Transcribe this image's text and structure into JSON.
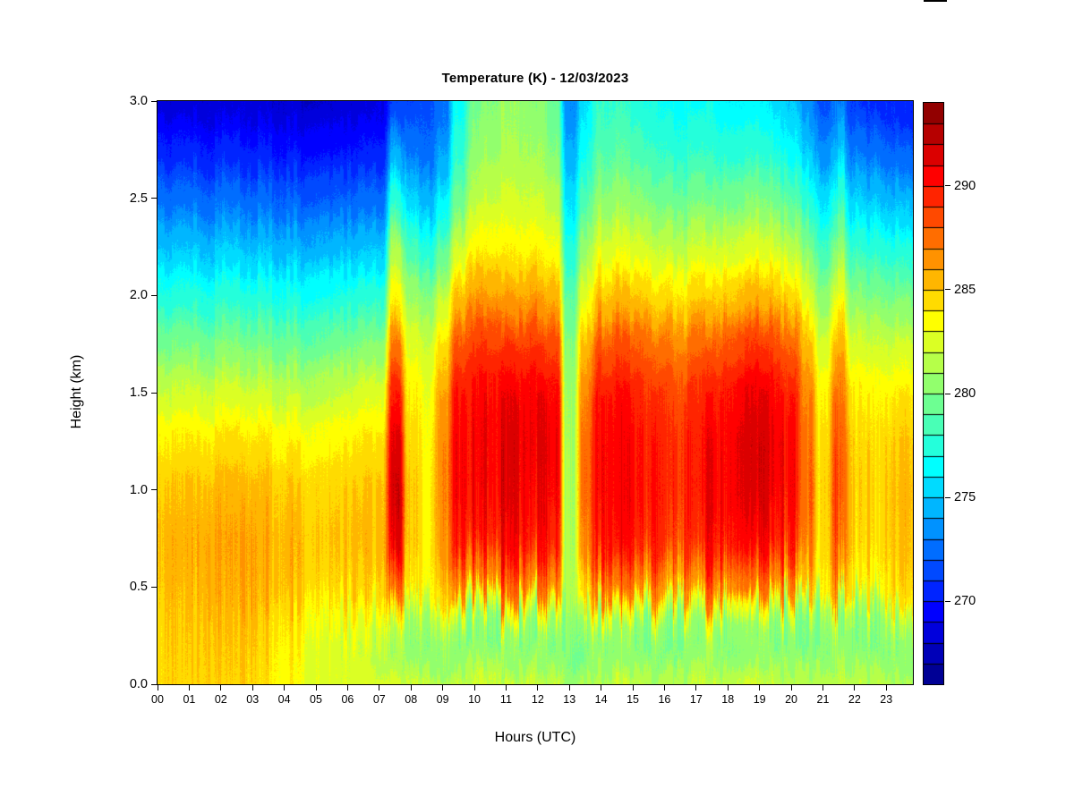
{
  "chart_data": {
    "type": "heatmap",
    "title": "Temperature (K) - 12/03/2023",
    "xlabel": "Hours (UTC)",
    "ylabel": "Height (km)",
    "x_tick_labels": [
      "00",
      "01",
      "02",
      "03",
      "04",
      "05",
      "06",
      "07",
      "08",
      "09",
      "10",
      "11",
      "12",
      "13",
      "14",
      "15",
      "16",
      "17",
      "18",
      "19",
      "20",
      "21",
      "22",
      "23"
    ],
    "y_tick_labels": [
      "0.0",
      "0.5",
      "1.0",
      "1.5",
      "2.0",
      "2.5",
      "3.0"
    ],
    "y_tick_values": [
      0,
      0.5,
      1,
      1.5,
      2,
      2.5,
      3
    ],
    "xlim": [
      0,
      23.84
    ],
    "ylim": [
      0,
      3
    ],
    "zlim": [
      266,
      294
    ],
    "colorbar_tick_labels": [
      "270",
      "275",
      "280",
      "285",
      "290"
    ],
    "colorbar_tick_values": [
      270,
      275,
      280,
      285,
      290
    ],
    "colormap": "jet",
    "jet_anchors": [
      [
        0,
        [
          0,
          0,
          131
        ]
      ],
      [
        0.125,
        [
          0,
          0,
          255
        ]
      ],
      [
        0.375,
        [
          0,
          255,
          255
        ]
      ],
      [
        0.625,
        [
          255,
          255,
          0
        ]
      ],
      [
        0.875,
        [
          255,
          0,
          0
        ]
      ],
      [
        1,
        [
          128,
          0,
          0
        ]
      ]
    ],
    "grid_on": false,
    "legend_position": "right-colorbar",
    "x_hours": [
      0,
      0.5,
      1,
      1.5,
      2,
      2.5,
      3,
      3.5,
      4,
      4.5,
      5,
      5.5,
      6,
      6.5,
      7,
      7.5,
      8,
      8.5,
      9,
      9.5,
      10,
      10.5,
      11,
      11.5,
      12,
      12.5,
      13,
      13.5,
      14,
      14.5,
      15,
      15.5,
      16,
      16.5,
      17,
      17.5,
      18,
      18.5,
      19,
      19.5,
      20,
      20.5,
      21,
      21.5,
      22,
      22.5,
      23,
      23.5,
      24
    ],
    "heights_km": [
      0,
      0.15,
      0.3,
      0.4,
      0.5,
      0.75,
      1,
      1.25,
      1.5,
      1.75,
      2,
      2.25,
      2.5,
      2.75,
      3
    ],
    "values_K": [
      [
        284.8,
        284.9,
        285.1,
        285.3,
        285.6,
        285.8,
        285.4,
        284.3,
        282.4,
        280.0,
        277.6,
        275.2,
        272.8,
        270.6,
        268.6
      ],
      [
        284.9,
        285.0,
        285.2,
        285.4,
        285.7,
        285.8,
        285.3,
        284.2,
        282.3,
        280.0,
        277.5,
        275.0,
        272.6,
        270.4,
        268.5
      ],
      [
        284.7,
        284.9,
        285.1,
        285.3,
        285.6,
        285.7,
        285.3,
        284.1,
        282.2,
        279.8,
        277.4,
        274.9,
        272.5,
        270.3,
        268.4
      ],
      [
        284.6,
        284.8,
        285.0,
        285.2,
        285.5,
        285.7,
        285.2,
        284.1,
        282.2,
        279.8,
        277.3,
        274.8,
        272.4,
        270.2,
        268.4
      ],
      [
        284.5,
        284.7,
        284.9,
        285.2,
        285.5,
        285.6,
        285.2,
        284.0,
        282.1,
        279.7,
        277.3,
        274.8,
        272.4,
        270.2,
        268.3
      ],
      [
        284.4,
        284.6,
        284.8,
        285.1,
        285.4,
        285.6,
        285.1,
        284.0,
        282.0,
        279.6,
        277.2,
        274.7,
        272.3,
        270.1,
        268.3
      ],
      [
        284.2,
        284.4,
        284.7,
        285.0,
        285.4,
        285.5,
        285.1,
        283.9,
        282.0,
        279.6,
        277.2,
        274.6,
        272.2,
        270.0,
        268.2
      ],
      [
        283.9,
        284.1,
        284.4,
        284.8,
        285.3,
        285.5,
        285.0,
        283.9,
        281.9,
        279.5,
        277.1,
        274.6,
        272.2,
        270.0,
        268.2
      ],
      [
        283.6,
        283.7,
        284.1,
        284.6,
        285.2,
        285.4,
        285.0,
        283.8,
        281.9,
        279.5,
        277.1,
        274.5,
        272.1,
        269.9,
        268.2
      ],
      [
        283.3,
        283.4,
        283.8,
        284.4,
        285.1,
        285.4,
        284.9,
        283.8,
        281.8,
        279.4,
        277.0,
        274.5,
        272.1,
        269.9,
        268.1
      ],
      [
        283.0,
        283.0,
        283.6,
        284.3,
        285.0,
        285.3,
        284.9,
        283.7,
        281.8,
        279.4,
        277.0,
        274.4,
        272.0,
        269.8,
        268.1
      ],
      [
        282.8,
        282.7,
        283.3,
        284.1,
        284.9,
        285.3,
        284.8,
        283.7,
        281.9,
        279.5,
        277.0,
        274.4,
        272.0,
        269.8,
        268.1
      ],
      [
        282.6,
        282.3,
        283.0,
        283.9,
        284.8,
        285.2,
        284.8,
        283.8,
        282.0,
        279.6,
        277.1,
        274.5,
        272.0,
        269.8,
        268.2
      ],
      [
        282.4,
        281.9,
        282.6,
        283.6,
        284.6,
        285.1,
        284.7,
        283.8,
        282.1,
        279.7,
        277.2,
        274.5,
        272.1,
        269.9,
        268.3
      ],
      [
        282.3,
        281.2,
        281.9,
        283.0,
        284.2,
        285.0,
        284.8,
        284.0,
        282.4,
        280.0,
        277.5,
        274.8,
        272.3,
        270.1,
        268.6
      ],
      [
        282.5,
        280.8,
        281.5,
        284.0,
        287.5,
        290.9,
        291.6,
        291.0,
        289.6,
        287.0,
        283.5,
        281.0,
        277.5,
        274.0,
        271.0
      ],
      [
        282.0,
        280.2,
        280.6,
        282.0,
        284.0,
        284.8,
        284.8,
        284.3,
        283.6,
        282.4,
        280.5,
        278.0,
        275.0,
        272.5,
        271.0
      ],
      [
        281.8,
        279.9,
        280.2,
        281.2,
        283.0,
        283.3,
        283.2,
        283.0,
        282.6,
        281.6,
        279.6,
        276.8,
        274.0,
        272.0,
        271.3
      ],
      [
        281.9,
        280.0,
        280.3,
        281.6,
        284.0,
        285.5,
        286.0,
        286.0,
        285.5,
        284.0,
        281.8,
        279.0,
        276.2,
        273.8,
        272.2
      ],
      [
        282.0,
        280.1,
        280.4,
        282.6,
        286.5,
        289.6,
        290.3,
        290.3,
        289.8,
        288.0,
        285.0,
        282.0,
        279.3,
        277.5,
        276.5
      ],
      [
        282.2,
        280.2,
        280.5,
        282.9,
        287.0,
        290.0,
        290.6,
        290.6,
        290.2,
        288.6,
        285.8,
        283.2,
        281.3,
        280.2,
        279.5
      ],
      [
        282.3,
        280.3,
        280.6,
        283.0,
        287.2,
        290.2,
        290.8,
        290.9,
        290.5,
        288.9,
        286.0,
        283.6,
        282.0,
        280.8,
        280.2
      ],
      [
        282.4,
        280.3,
        280.6,
        283.1,
        287.3,
        290.3,
        291.0,
        291.2,
        290.8,
        289.2,
        286.2,
        283.8,
        282.3,
        281.2,
        280.6
      ],
      [
        282.4,
        280.4,
        280.7,
        283.1,
        287.3,
        290.4,
        291.1,
        291.3,
        291.0,
        289.3,
        286.3,
        283.9,
        282.4,
        281.3,
        280.7
      ],
      [
        282.4,
        280.4,
        280.7,
        283.0,
        287.2,
        290.3,
        291.0,
        291.3,
        291.0,
        289.2,
        286.2,
        283.8,
        282.2,
        281.0,
        280.4
      ],
      [
        282.3,
        280.3,
        280.6,
        282.9,
        287.0,
        290.0,
        290.7,
        291.0,
        290.6,
        288.8,
        285.8,
        283.4,
        281.6,
        280.2,
        279.4
      ],
      [
        280.8,
        279.6,
        279.9,
        280.4,
        281.0,
        280.8,
        280.7,
        280.6,
        280.4,
        279.8,
        278.8,
        277.2,
        275.6,
        274.2,
        273.0
      ],
      [
        281.5,
        280.0,
        280.3,
        281.8,
        284.5,
        287.0,
        287.5,
        287.5,
        287.0,
        285.5,
        283.0,
        280.8,
        278.8,
        277.0,
        275.8
      ],
      [
        282.0,
        280.2,
        280.5,
        282.8,
        286.8,
        289.8,
        290.4,
        290.4,
        290.0,
        288.2,
        285.2,
        282.6,
        280.5,
        278.8,
        277.8
      ],
      [
        282.1,
        280.3,
        280.6,
        282.9,
        287.0,
        290.0,
        290.5,
        290.5,
        290.0,
        288.3,
        285.3,
        282.7,
        280.6,
        278.9,
        277.9
      ],
      [
        282.1,
        280.3,
        280.6,
        282.9,
        287.0,
        290.0,
        290.5,
        290.4,
        289.9,
        288.2,
        285.2,
        282.6,
        280.4,
        278.7,
        277.6
      ],
      [
        282.0,
        280.2,
        280.5,
        282.8,
        286.8,
        289.8,
        290.3,
        290.2,
        289.6,
        287.9,
        285.0,
        282.4,
        280.2,
        278.4,
        277.3
      ],
      [
        282.0,
        280.2,
        280.5,
        282.7,
        286.6,
        289.5,
        290.0,
        289.9,
        289.3,
        287.6,
        284.7,
        282.1,
        279.9,
        278.1,
        277.0
      ],
      [
        281.9,
        280.1,
        280.4,
        282.4,
        286.2,
        289.0,
        289.5,
        289.4,
        288.8,
        287.0,
        284.2,
        281.7,
        279.5,
        277.7,
        276.6
      ],
      [
        281.9,
        280.1,
        280.4,
        282.5,
        286.3,
        289.2,
        289.7,
        289.6,
        289.0,
        287.2,
        284.3,
        281.8,
        279.5,
        277.6,
        276.5
      ],
      [
        282.0,
        280.2,
        280.5,
        282.7,
        286.6,
        289.6,
        290.2,
        290.1,
        289.5,
        287.7,
        284.6,
        282.0,
        279.6,
        277.6,
        276.4
      ],
      [
        282.0,
        280.2,
        280.5,
        282.8,
        286.9,
        290.1,
        290.8,
        290.8,
        290.2,
        288.3,
        285.0,
        282.2,
        279.7,
        277.6,
        276.3
      ],
      [
        282.1,
        280.3,
        280.6,
        282.9,
        287.1,
        290.4,
        291.2,
        291.3,
        290.7,
        288.7,
        285.3,
        282.4,
        279.8,
        277.6,
        276.2
      ],
      [
        282.1,
        280.3,
        280.6,
        282.9,
        287.1,
        290.4,
        291.3,
        291.4,
        290.8,
        288.8,
        285.3,
        282.4,
        279.8,
        277.5,
        276.0
      ],
      [
        282.0,
        280.2,
        280.5,
        282.8,
        287.0,
        290.2,
        291.0,
        291.1,
        290.5,
        288.5,
        285.1,
        282.2,
        279.5,
        277.2,
        275.6
      ],
      [
        282.0,
        280.2,
        280.5,
        282.7,
        286.7,
        289.8,
        290.5,
        290.5,
        289.9,
        287.9,
        284.6,
        281.7,
        279.0,
        276.6,
        275.0
      ],
      [
        281.9,
        280.1,
        280.4,
        282.0,
        285.5,
        287.5,
        288.0,
        287.8,
        287.2,
        285.5,
        282.8,
        280.2,
        277.6,
        275.2,
        273.4
      ],
      [
        281.8,
        280.0,
        280.2,
        281.2,
        283.6,
        284.3,
        284.5,
        284.2,
        283.6,
        282.2,
        280.2,
        278.0,
        275.6,
        273.2,
        271.6
      ],
      [
        282.0,
        280.2,
        280.4,
        281.8,
        285.6,
        287.6,
        288.0,
        287.8,
        287.0,
        285.2,
        282.6,
        280.0,
        277.4,
        274.6,
        272.4
      ],
      [
        281.8,
        280.0,
        280.2,
        281.3,
        283.8,
        284.6,
        284.8,
        284.5,
        283.8,
        282.2,
        280.0,
        277.6,
        275.0,
        272.6,
        270.8
      ],
      [
        281.7,
        279.9,
        280.1,
        281.2,
        283.6,
        284.3,
        284.5,
        284.2,
        283.5,
        281.9,
        279.7,
        277.3,
        274.7,
        272.3,
        270.4
      ],
      [
        281.7,
        279.9,
        280.1,
        281.1,
        283.5,
        284.2,
        284.4,
        284.1,
        283.4,
        281.8,
        279.6,
        277.2,
        274.5,
        272.1,
        270.2
      ],
      [
        281.8,
        280.0,
        280.2,
        281.4,
        284.0,
        284.8,
        285.0,
        284.7,
        283.9,
        282.2,
        279.9,
        277.4,
        274.7,
        272.2,
        270.2
      ],
      [
        281.7,
        279.9,
        280.1,
        281.2,
        283.6,
        284.3,
        284.5,
        284.2,
        283.4,
        281.8,
        279.5,
        277.0,
        274.3,
        271.9,
        269.9
      ]
    ]
  },
  "misc": {
    "background_color": "#ffffff",
    "axis_color": "#000000",
    "top_edge_artifact_color": "#000000"
  }
}
